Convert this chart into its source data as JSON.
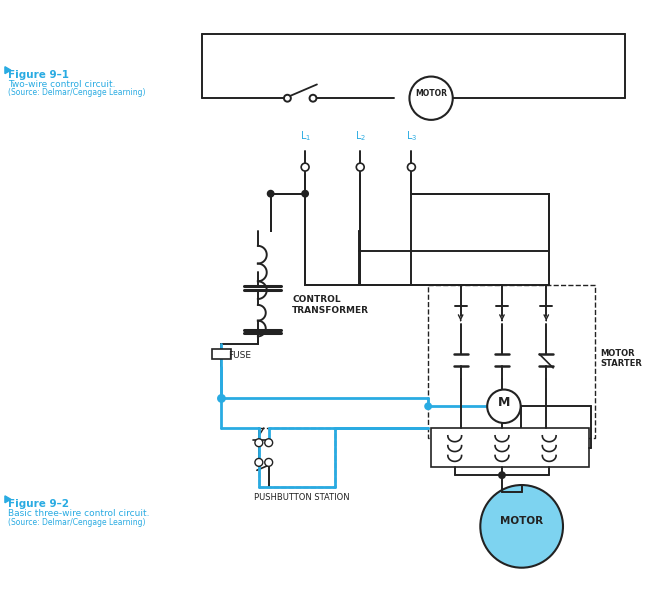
{
  "color_blue": "#29ABE2",
  "color_black": "#222222",
  "color_motor_fill": "#7DD3F0",
  "bg_color": "#FFFFFF",
  "fig1_label": "Figure 9–1",
  "fig1_desc": "Two-wire control circuit.",
  "fig1_source": "(Source: Delmar/Cengage Learning)",
  "fig2_label": "Figure 9–2",
  "fig2_desc": "Basic three-wire control circuit.",
  "fig2_source": "(Source: Delmar/Cengage Learning)"
}
